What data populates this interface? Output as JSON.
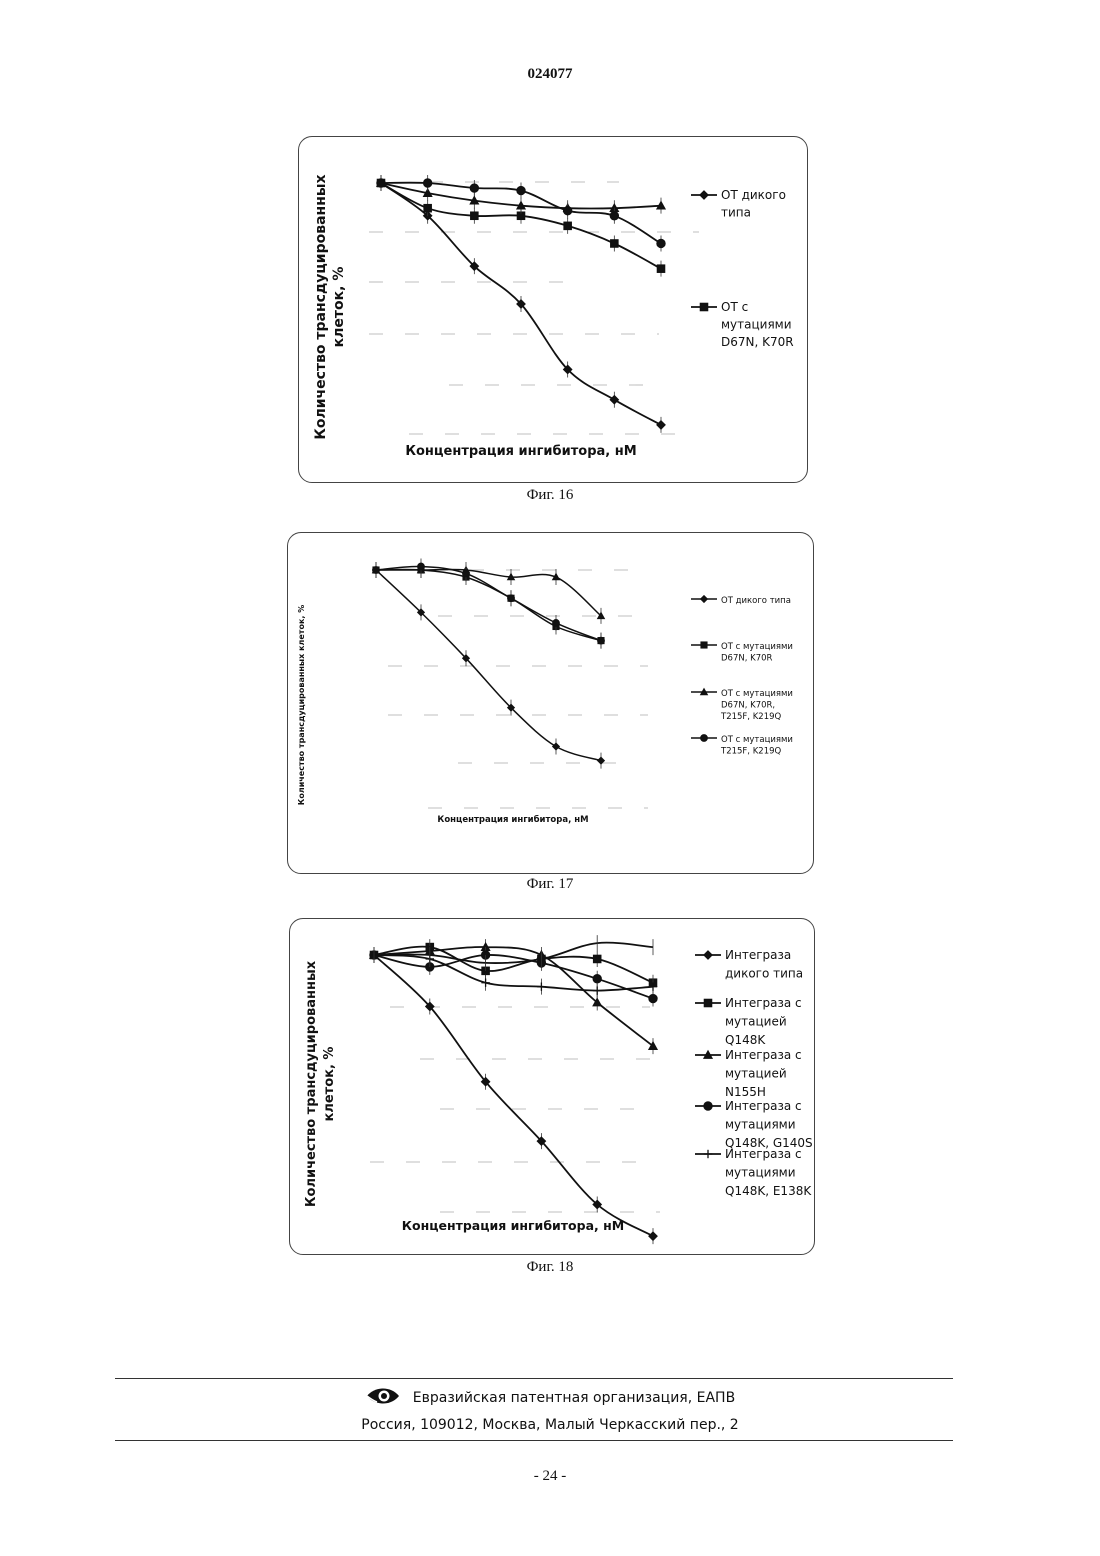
{
  "header": {
    "doc_number": "024077"
  },
  "footer": {
    "org": "Евразийская патентная организация, ЕАПВ",
    "address": "Россия, 109012, Москва, Малый Черкасский пер., 2",
    "page_number": "- 24 -",
    "logo_icon": "eye-logo-icon"
  },
  "chart_data": [
    {
      "type": "line",
      "caption": "Фиг. 16",
      "xlabel": "Концентрация ингибитора, нМ",
      "ylabel": [
        "Количество трансдуцированных",
        "клеток, %"
      ],
      "x": [
        1,
        2,
        3,
        4,
        5,
        6,
        7
      ],
      "ylim": [
        0,
        100
      ],
      "grid": false,
      "legend_position": "right",
      "series": [
        {
          "name": "ОТ дикого типа",
          "legend_lines": [
            "ОТ дикого",
            "типа"
          ],
          "marker": "diamond",
          "values": [
            100,
            87,
            67,
            52,
            26,
            14,
            4
          ],
          "legend": true
        },
        {
          "name": "ОТ с мутациями D67N, K70R",
          "legend_lines": [
            "ОТ с",
            "мутациями",
            "D67N, K70R"
          ],
          "marker": "square",
          "values": [
            100,
            90,
            87,
            87,
            83,
            76,
            66
          ],
          "legend": true
        },
        {
          "name": "",
          "marker": "triangle",
          "values": [
            100,
            96,
            93,
            91,
            90,
            90,
            91
          ],
          "legend": false
        },
        {
          "name": "",
          "marker": "circle",
          "values": [
            100,
            100,
            98,
            97,
            89,
            87,
            76
          ],
          "legend": false
        }
      ]
    },
    {
      "type": "line",
      "caption": "Фиг. 17",
      "xlabel": "Концентрация ингибитора, нМ",
      "ylabel": [
        "Количество трансдуцированных клеток, %"
      ],
      "x": [
        1,
        2,
        3,
        4,
        5,
        6,
        7
      ],
      "ylim": [
        0,
        100
      ],
      "grid": false,
      "legend_position": "right",
      "series": [
        {
          "name": "ОТ дикого типа",
          "legend_lines": [
            "ОТ дикого типа"
          ],
          "marker": "diamond",
          "values": [
            100,
            88,
            75,
            61,
            50,
            46,
            null
          ],
          "legend": true
        },
        {
          "name": "ОТ с мутациями D67N, K70R",
          "legend_lines": [
            "ОТ с мутациями",
            "D67N, K70R"
          ],
          "marker": "square",
          "values": [
            100,
            100,
            98,
            92,
            84,
            80,
            null
          ],
          "legend": true
        },
        {
          "name": "ОТ с мутациями D67N, K70R, T215F, K219Q",
          "legend_lines": [
            "ОТ с мутациями",
            "D67N, K70R,",
            "T215F, K219Q"
          ],
          "marker": "triangle",
          "values": [
            100,
            100,
            100,
            98,
            98,
            87,
            null
          ],
          "legend": true
        },
        {
          "name": "ОТ с мутациями T215F, K219Q",
          "legend_lines": [
            "ОТ с мутациями",
            "T215F, K219Q"
          ],
          "marker": "circle",
          "values": [
            100,
            101,
            99,
            92,
            85,
            80,
            null
          ],
          "legend": true
        }
      ]
    },
    {
      "type": "line",
      "caption": "Фиг. 18",
      "xlabel": "Концентрация ингибитора, нМ",
      "ylabel": [
        "Количество трансдуцированных",
        "клеток, %"
      ],
      "x": [
        1,
        2,
        3,
        4,
        5,
        6
      ],
      "ylim": [
        0,
        100
      ],
      "grid": false,
      "legend_position": "right",
      "series": [
        {
          "name": "Интеграза дикого типа",
          "legend_lines": [
            "Интеграза",
            "дикого типа"
          ],
          "marker": "diamond",
          "values": [
            100,
            87,
            68,
            53,
            37,
            29
          ],
          "legend": true
        },
        {
          "name": "Интеграза с мутацией Q148K",
          "legend_lines": [
            "Интеграза с",
            "мутацией",
            "Q148K"
          ],
          "marker": "square",
          "values": [
            100,
            102,
            96,
            99,
            99,
            93
          ],
          "legend": true
        },
        {
          "name": "Интеграза с мутацией N155H",
          "legend_lines": [
            "Интеграза с",
            "мутацией",
            "N155H"
          ],
          "marker": "triangle",
          "values": [
            100,
            101,
            102,
            100,
            88,
            77
          ],
          "legend": true
        },
        {
          "name": "Интеграза с мутациями Q148K, G140S",
          "legend_lines": [
            "Интеграза с",
            "мутациями",
            "Q148K, G140S"
          ],
          "marker": "circle",
          "values": [
            100,
            97,
            100,
            98,
            94,
            89
          ],
          "legend": true
        },
        {
          "name": "Интеграза с мутациями Q148K, E138K",
          "legend_lines": [
            "Интеграза с",
            "мутациями",
            "Q148K, E138K"
          ],
          "marker": "plus",
          "values": [
            100,
            99,
            93,
            92,
            91,
            92
          ],
          "legend": true
        },
        {
          "name": "",
          "marker": "none",
          "values": [
            100,
            100,
            98,
            99,
            103,
            102
          ],
          "legend": false
        }
      ]
    }
  ]
}
